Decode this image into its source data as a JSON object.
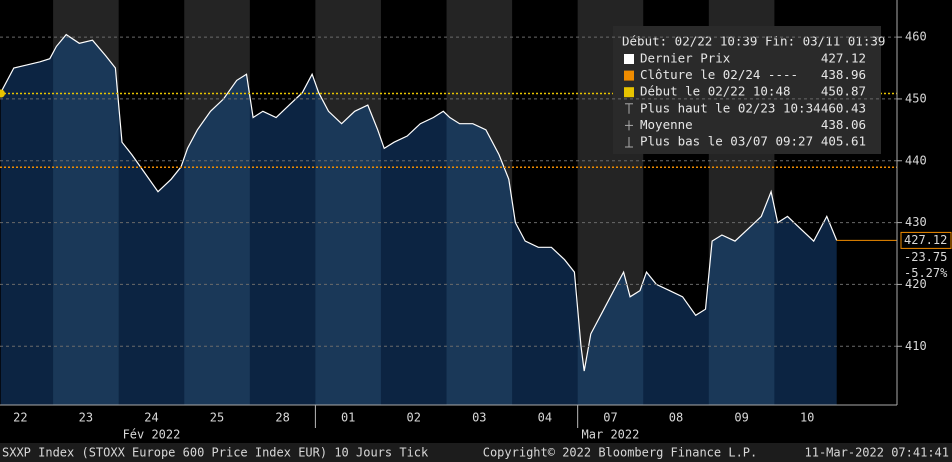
{
  "chart_data": {
    "type": "line",
    "days": [
      "22",
      "23",
      "24",
      "25",
      "28",
      "01",
      "02",
      "03",
      "04",
      "07",
      "08",
      "09",
      "10"
    ],
    "months": [
      {
        "label": "Fév 2022",
        "day": 2
      },
      {
        "label": "Mar 2022",
        "day": 9
      }
    ],
    "x": [
      0.2,
      0.4,
      0.6,
      0.8,
      0.95,
      1.05,
      1.2,
      1.4,
      1.6,
      1.8,
      1.95,
      2.05,
      2.2,
      2.4,
      2.6,
      2.8,
      2.95,
      3.05,
      3.2,
      3.4,
      3.6,
      3.8,
      3.95,
      4.05,
      4.2,
      4.4,
      4.6,
      4.8,
      4.95,
      5.05,
      5.2,
      5.4,
      5.6,
      5.8,
      5.95,
      6.05,
      6.2,
      6.4,
      6.6,
      6.8,
      6.95,
      7.05,
      7.2,
      7.4,
      7.6,
      7.8,
      7.95,
      8.05,
      8.2,
      8.4,
      8.6,
      8.8,
      8.95,
      9.05,
      9.1,
      9.2,
      9.4,
      9.6,
      9.7,
      9.8,
      9.95,
      10.05,
      10.2,
      10.4,
      10.6,
      10.8,
      10.95,
      11.05,
      11.2,
      11.4,
      11.6,
      11.8,
      11.95,
      12.05,
      12.2,
      12.4,
      12.6,
      12.8,
      12.95
    ],
    "series": [
      {
        "name": "Dernier Prix",
        "color": "#ffffff",
        "fill": "#0c2442",
        "fill_alt": "#1a3858",
        "values": [
          451,
          455,
          455.5,
          456,
          456.5,
          458.5,
          460.4,
          459,
          459.5,
          457,
          455,
          443,
          441,
          438,
          435,
          437,
          439,
          442,
          445,
          448,
          450,
          453,
          454,
          447,
          448,
          447,
          449,
          451,
          454,
          451,
          448,
          446,
          448,
          449,
          445,
          442,
          443,
          444,
          446,
          447,
          448,
          447,
          446,
          446,
          445,
          441,
          437,
          430,
          427,
          426,
          426,
          424,
          422,
          410,
          406,
          412,
          416,
          420,
          422,
          418,
          419,
          422,
          420,
          419,
          418,
          415,
          416,
          427,
          428,
          427,
          429,
          431,
          435,
          430,
          431,
          429,
          427,
          431,
          427.12
        ]
      }
    ],
    "xlim": [
      0.19,
      13.87
    ],
    "ylim": [
      400.5,
      466
    ],
    "yticks": [
      410,
      420,
      430,
      440,
      450,
      460
    ],
    "grid": true,
    "band_color": "#242424",
    "legend": {
      "header": "Début: 02/22 10:39 Fin: 03/11 01:39",
      "entries": [
        {
          "label": "Dernier Prix",
          "value": 427.12,
          "color": "#ffffff"
        },
        {
          "label": "Clôture le 02/24 ----",
          "value": 438.96,
          "color": "#f08c00"
        },
        {
          "label": "Début le 02/22 10:48",
          "value": 450.87,
          "color": "#e8c400"
        },
        {
          "label": "Plus haut le 02/23 10:34",
          "value": 460.43
        },
        {
          "label": "Moyenne",
          "value": 438.06
        },
        {
          "label": "Plus bas le 03/07 09:27",
          "value": 405.61
        }
      ]
    },
    "last_tag": {
      "value": 427.12,
      "change": -23.75,
      "change_pct": {
        "value": -5.27,
        "label": "-5.27%"
      }
    },
    "footer": {
      "left": "SXXP Index (STOXX Europe 600 Price Index EUR) 10 Jours  Tick",
      "center": "Copyright© 2022 Bloomberg Finance L.P.",
      "right": "11-Mar-2022 07:41:41"
    }
  }
}
